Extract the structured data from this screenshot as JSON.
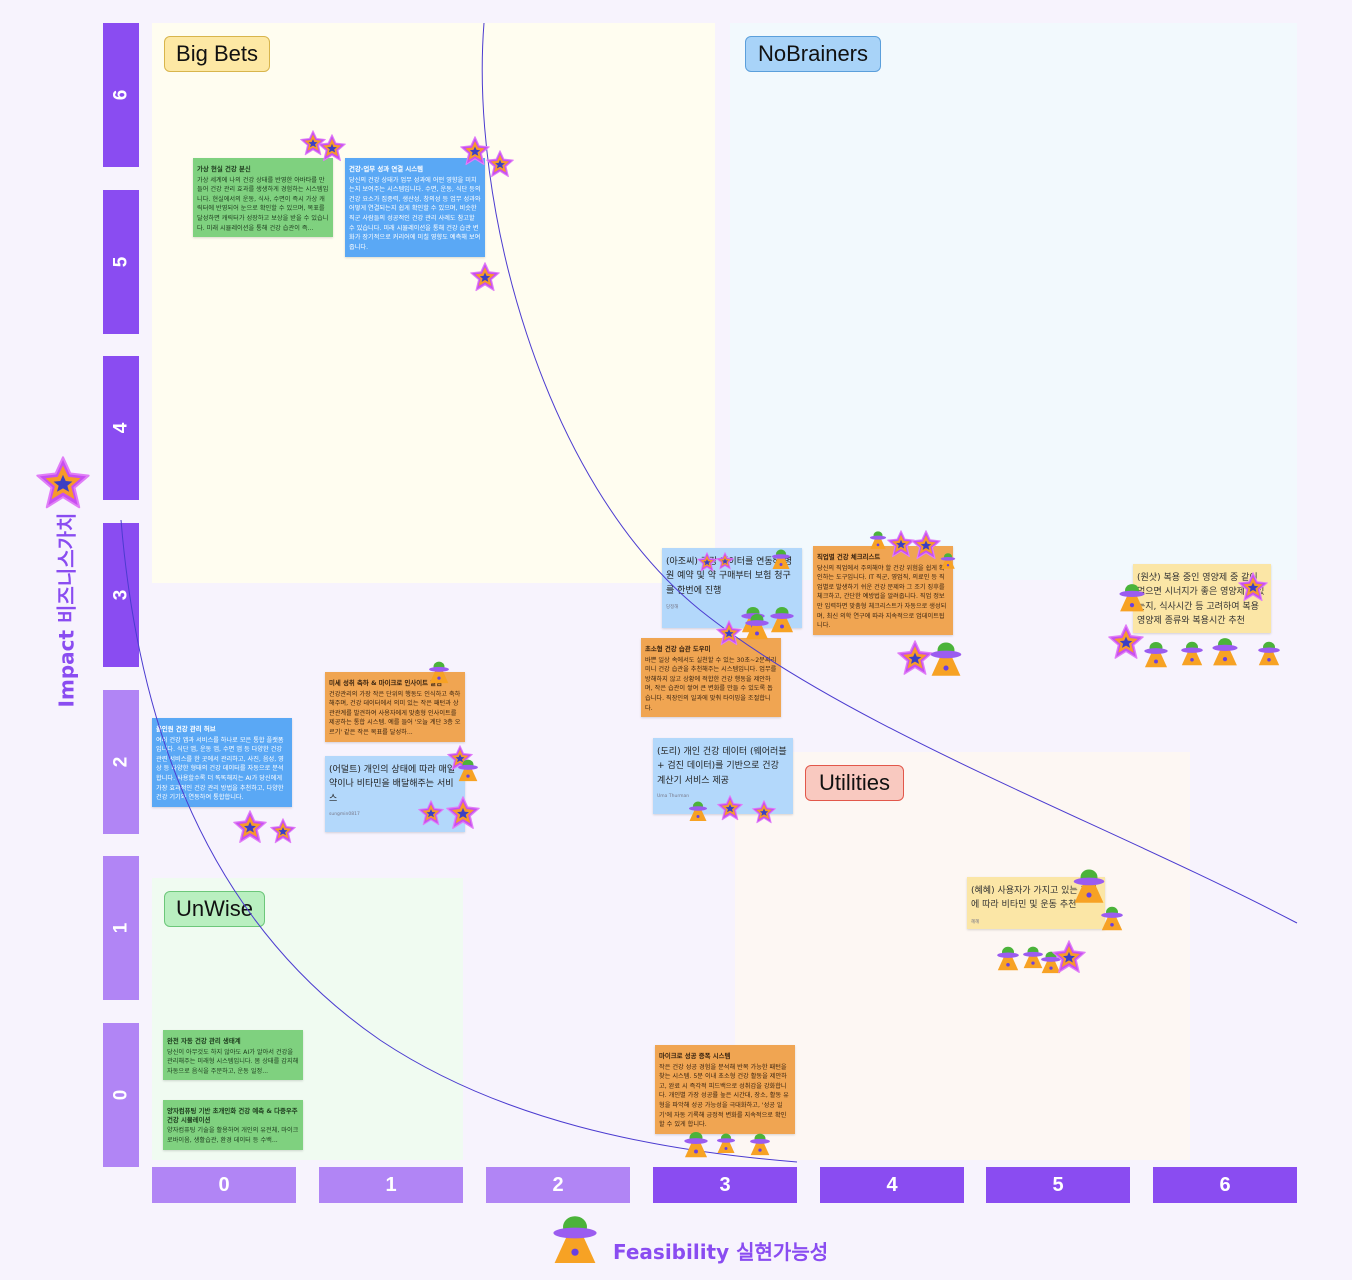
{
  "colors": {
    "axis_dark": "#8a4cf1",
    "axis_light": "#b185f5",
    "curve": "#4b3bd0",
    "axis_title": "#8a4cf1"
  },
  "y_axis": {
    "title": "Impact 비즈니스가치",
    "icon": "star-icon",
    "ticks": [
      "6",
      "5",
      "4",
      "3",
      "2",
      "1",
      "0"
    ]
  },
  "x_axis": {
    "title": "Feasibility 실현가능성",
    "icon": "ufo-icon",
    "ticks": [
      "0",
      "1",
      "2",
      "3",
      "4",
      "5",
      "6"
    ]
  },
  "quadrants": {
    "big_bets": "Big Bets",
    "no_brainers": "NoBrainers",
    "unwise": "UnWise",
    "utilities": "Utilities"
  },
  "stickies": [
    {
      "title": "가상 현실 건강 분신",
      "body": "가상 세계에 나의 건강 상태를 반영한 아바타를 만들어 건강 관리 효과를 생생하게 경험하는 시스템입니다. 현실에서의 운동, 식사, 수면이 즉시 가상 캐릭터에 반영되어 눈으로 확인할 수 있으며, 목표를 달성하면 캐릭터가 성장하고 보상을 받을 수 있습니다. 미래 시뮬레이션을 통해 건강 습관이 즉..."
    },
    {
      "title": "건강-업무 성과 연결 시스템",
      "body": "당신의 건강 상태가 업무 성과에 어떤 영향을 미치는지 보여주는 시스템입니다. 수면, 운동, 식단 등의 건강 요소가 집중력, 생산성, 창의성 등 업무 성과와 어떻게 연결되는지 쉽게 확인할 수 있으며, 비슷한 직군 사람들의 성공적인 건강 관리 사례도 참고할 수 있습니다. 미래 시뮬레이션을 통해 건강 습관 변화가 장기적으로 커리어에 미칠 영향도 예측해 보여줍니다."
    },
    {
      "title": "올인원 건강 관리 허브",
      "body": "여러 건강 앱과 서비스를 하나로 모은 통합 플랫폼입니다. 식단 앱, 운동 앱, 수면 앱 등 다양한 건강 관련 서비스를 한 곳에서 관리하고, 사진, 음성, 영상 등 다양한 형태의 건강 데이터를 자동으로 분석합니다. 사용할수록 더 똑똑해지는 AI가 당신에게 가장 효과적인 건강 관리 방법을 추천하고, 다양한 건강 기기와 연동하여 통합합니다."
    },
    {
      "title": "미세 성취 축하 & 마이크로 인사이트 알림",
      "body": "건강관리의 가장 작은 단위의 행동도 인식하고 축하해주며, 건강 데이터에서 의미 있는 작은 패턴과 상관관계를 발견하여 사용자에게 맞춤형 인사이트를 제공하는 통합 시스템. 예를 들어 '오늘 계단 3층 오르기' 같은 작은 목표를 달성하..."
    },
    {
      "body": "(어덜트) 개인의 상태에 따라 매일 약이나 비타민을 배달해주는 서비스",
      "author": "sungmin0817"
    },
    {
      "body": "(아조씨) 건강 데이터를 연동해 병원 예약 및 약 구매부터 보험 청구를 한번에 진행",
      "author": "당정해"
    },
    {
      "title": "직업별 건강 체크리스트",
      "body": "당신의 직업에서 주의해야 할 건강 위험을 쉽게 확인하는 도구입니다. IT 직군, 영업직, 의료인 등 직업별로 발생하기 쉬운 건강 문제와 그 조기 징후를 체크하고, 간단한 예방법을 알려줍니다. 직업 정보만 입력하면 맞춤형 체크리스트가 자동으로 생성되며, 최신 의학 연구에 따라 지속적으로 업데이트됩니다."
    },
    {
      "title": "초소형 건강 습관 도우미",
      "body": "바쁜 일상 속에서도 실천할 수 있는 30초~2분짜리 미니 건강 습관을 추천해주는 시스템입니다. 업무를 방해하지 않고 상황에 적합한 건강 행동을 제안하며, 작은 습관이 쌓여 큰 변화를 만들 수 있도록 돕습니다. 직장인의 일과에 맞춰 타이밍을 조절합니다."
    },
    {
      "body": "(도리) 개인 건강 데이터 (웨어러블 + 검진 데이터)를 기반으로 건강 계산기 서비스 제공",
      "author": "Uma Thurman"
    },
    {
      "body": "(원샷) 복용 중인 영양제 중 같이 먹으면 시너지가 좋은 영양제가 있는지, 식사시간 등 고려하여 복용 영양제 종류와 복용시간 추천"
    },
    {
      "body": "(혜혜) 사용자가 가지고 있는 질병에 따라 비타민 및 운동 추천",
      "author": "혜혜"
    },
    {
      "title": "완전 자동 건강 관리 생태계",
      "body": "당신이 아무것도 하지 않아도 AI가 알아서 건강을 관리해주는 미래형 시스템입니다. 몸 상태를 감지해 자동으로 음식을 주문하고, 운동 일정..."
    },
    {
      "title": "양자컴퓨팅 기반 초개인화 건강 예측 & 다중우주 건강 시뮬레이션",
      "body": "양자컴퓨팅 기술을 활용하여 개인의 유전체, 마이크로바이옴, 생활습관, 환경 데이터 등 수백..."
    },
    {
      "title": "마이크로 성공 증폭 시스템",
      "body": "작은 건강 성공 경험을 분석해 반복 가능한 패턴을 찾는 시스템. 5분 이내 초소형 건강 활동을 제안하고, 완료 시 즉각적 피드백으로 성취감을 강화합니다. 개인별 가장 성공률 높은 시간대, 장소, 활동 유형을 파악해 성공 가능성을 극대화하고, '성공 일기'에 자동 기록해 긍정적 변화를 지속적으로 확인할 수 있게 합니다."
    }
  ]
}
